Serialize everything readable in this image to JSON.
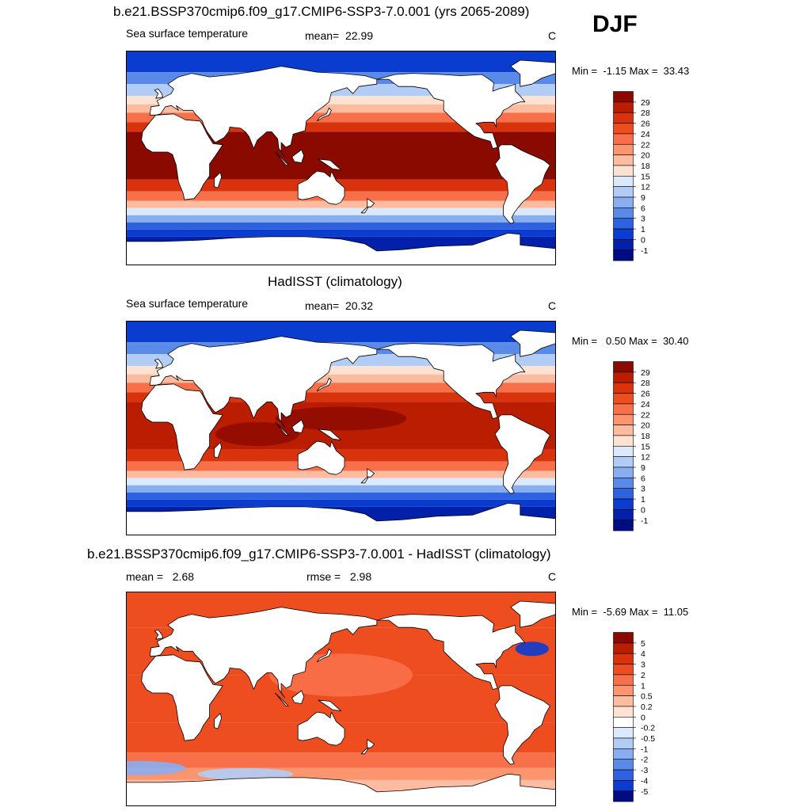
{
  "season": "DJF",
  "panels": [
    {
      "title": "b.e21.BSSP370cmip6.f09_g17.CMIP6-SSP3-7.0.001 (yrs 2065-2089)",
      "left_label": "Sea surface temperature",
      "mean_label": "mean=",
      "mean_value": "22.99",
      "units": "C",
      "min_label": "Min =",
      "min_value": "-1.15",
      "max_label": "Max =",
      "max_value": "33.43",
      "colorbar_labels": [
        "29",
        "28",
        "26",
        "24",
        "22",
        "20",
        "18",
        "15",
        "12",
        "9",
        "6",
        "3",
        "1",
        "0",
        "-1"
      ]
    },
    {
      "title": "HadISST (climatology)",
      "left_label": "Sea surface temperature",
      "mean_label": "mean=",
      "mean_value": "20.32",
      "units": "C",
      "min_label": "Min =",
      "min_value": "0.50",
      "max_label": "Max =",
      "max_value": "30.40",
      "colorbar_labels": [
        "29",
        "28",
        "26",
        "24",
        "22",
        "20",
        "18",
        "15",
        "12",
        "9",
        "6",
        "3",
        "1",
        "0",
        "-1"
      ]
    },
    {
      "title": "b.e21.BSSP370cmip6.f09_g17.CMIP6-SSP3-7.0.001 - HadISST (climatology)",
      "left_label": "mean =",
      "left_value": "2.68",
      "mid_label": "rmse =",
      "mid_value": "2.98",
      "units": "C",
      "min_label": "Min =",
      "min_value": "-5.69",
      "max_label": "Max =",
      "max_value": "11.05",
      "colorbar_labels": [
        "5",
        "4",
        "3",
        "2",
        "1",
        "0.5",
        "0.2",
        "0",
        "-0.2",
        "-0.5",
        "-1",
        "-2",
        "-3",
        "-4",
        "-5"
      ]
    }
  ],
  "colors": {
    "sst_scale": [
      "#8b0a00",
      "#bb1d00",
      "#d9330d",
      "#ee4e1f",
      "#f8704a",
      "#fb9570",
      "#fdbb9f",
      "#fde2d2",
      "#dae9fb",
      "#b1ccf5",
      "#88aef0",
      "#5a8ae8",
      "#2f62e0",
      "#0b3cd0",
      "#0320ab",
      "#000d82"
    ],
    "diff_scale": [
      "#8b0a00",
      "#bb1d00",
      "#d9330d",
      "#ee4e1f",
      "#f8704a",
      "#fb9570",
      "#fdbb9f",
      "#fde2d2",
      "#ffffff",
      "#dae9fb",
      "#b1ccf5",
      "#88aef0",
      "#5a8ae8",
      "#2f62e0",
      "#0b3cd0",
      "#000d82"
    ],
    "land": "#ffffff",
    "coast": "#000000"
  }
}
